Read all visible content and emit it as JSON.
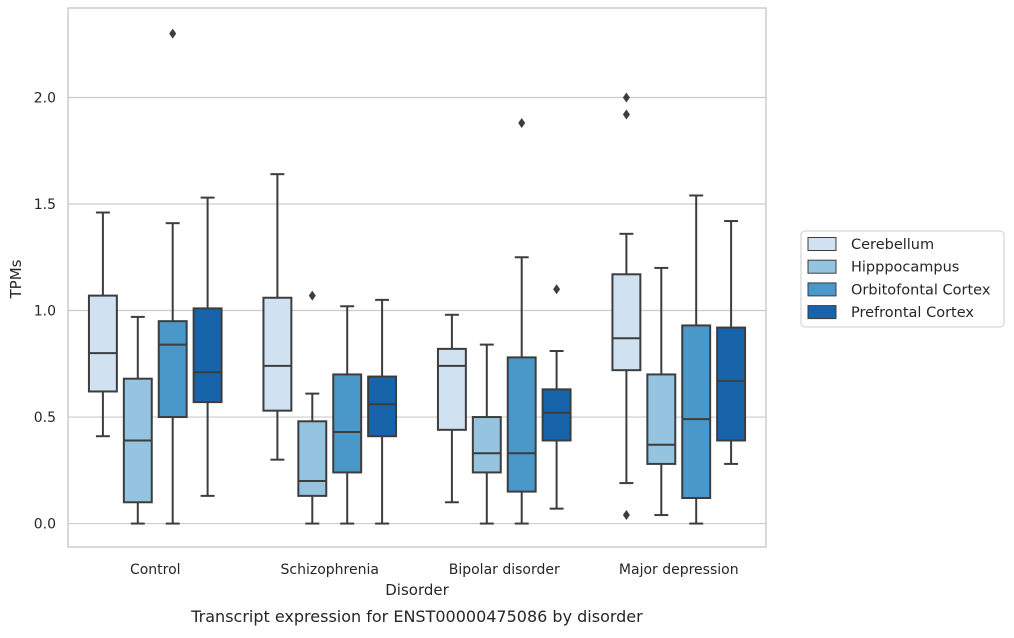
{
  "chart_data": {
    "type": "box",
    "title": "",
    "caption": "Transcript expression for ENST00000475086 by disorder",
    "xlabel": "Disorder",
    "ylabel": "TPMs",
    "ylim": [
      -0.11,
      2.42
    ],
    "yticks": [
      "0.0",
      "0.5",
      "1.0",
      "1.5",
      "2.0"
    ],
    "ytick_values": [
      0,
      0.5,
      1.0,
      1.5,
      2.0
    ],
    "grid": "horizontal",
    "legend_position": "right",
    "categories": [
      "Control",
      "Schizophrenia",
      "Bipolar disorder",
      "Major depression"
    ],
    "series": [
      {
        "name": "Cerebellum",
        "color": "#d0e1f2",
        "boxes": [
          {
            "whisker_low": 0.41,
            "q1": 0.62,
            "median": 0.8,
            "q3": 1.07,
            "whisker_high": 1.46,
            "outliers": []
          },
          {
            "whisker_low": 0.3,
            "q1": 0.53,
            "median": 0.74,
            "q3": 1.06,
            "whisker_high": 1.64,
            "outliers": []
          },
          {
            "whisker_low": 0.1,
            "q1": 0.44,
            "median": 0.74,
            "q3": 0.82,
            "whisker_high": 0.98,
            "outliers": []
          },
          {
            "whisker_low": 0.19,
            "q1": 0.72,
            "median": 0.87,
            "q3": 1.17,
            "whisker_high": 1.36,
            "outliers": [
              0.04,
              1.92,
              2.0
            ]
          }
        ]
      },
      {
        "name": "Hipppocampus",
        "color": "#94c4df",
        "boxes": [
          {
            "whisker_low": 0.0,
            "q1": 0.1,
            "median": 0.39,
            "q3": 0.68,
            "whisker_high": 0.97,
            "outliers": []
          },
          {
            "whisker_low": 0.0,
            "q1": 0.13,
            "median": 0.2,
            "q3": 0.48,
            "whisker_high": 0.61,
            "outliers": [
              1.07
            ]
          },
          {
            "whisker_low": 0.0,
            "q1": 0.24,
            "median": 0.33,
            "q3": 0.5,
            "whisker_high": 0.84,
            "outliers": []
          },
          {
            "whisker_low": 0.04,
            "q1": 0.28,
            "median": 0.37,
            "q3": 0.7,
            "whisker_high": 1.2,
            "outliers": []
          }
        ]
      },
      {
        "name": "Orbitofontal Cortex",
        "color": "#4a98c9",
        "boxes": [
          {
            "whisker_low": 0.0,
            "q1": 0.5,
            "median": 0.84,
            "q3": 0.95,
            "whisker_high": 1.41,
            "outliers": [
              2.3
            ]
          },
          {
            "whisker_low": 0.0,
            "q1": 0.24,
            "median": 0.43,
            "q3": 0.7,
            "whisker_high": 1.02,
            "outliers": []
          },
          {
            "whisker_low": 0.0,
            "q1": 0.15,
            "median": 0.33,
            "q3": 0.78,
            "whisker_high": 1.25,
            "outliers": [
              1.88
            ]
          },
          {
            "whisker_low": 0.0,
            "q1": 0.12,
            "median": 0.49,
            "q3": 0.93,
            "whisker_high": 1.54,
            "outliers": []
          }
        ]
      },
      {
        "name": "Prefrontal Cortex",
        "color": "#1764ab",
        "boxes": [
          {
            "whisker_low": 0.13,
            "q1": 0.57,
            "median": 0.71,
            "q3": 1.01,
            "whisker_high": 1.53,
            "outliers": []
          },
          {
            "whisker_low": 0.0,
            "q1": 0.41,
            "median": 0.56,
            "q3": 0.69,
            "whisker_high": 1.05,
            "outliers": []
          },
          {
            "whisker_low": 0.07,
            "q1": 0.39,
            "median": 0.52,
            "q3": 0.63,
            "whisker_high": 0.81,
            "outliers": [
              1.1
            ]
          },
          {
            "whisker_low": 0.28,
            "q1": 0.39,
            "median": 0.67,
            "q3": 0.92,
            "whisker_high": 1.42,
            "outliers": []
          }
        ]
      }
    ]
  }
}
